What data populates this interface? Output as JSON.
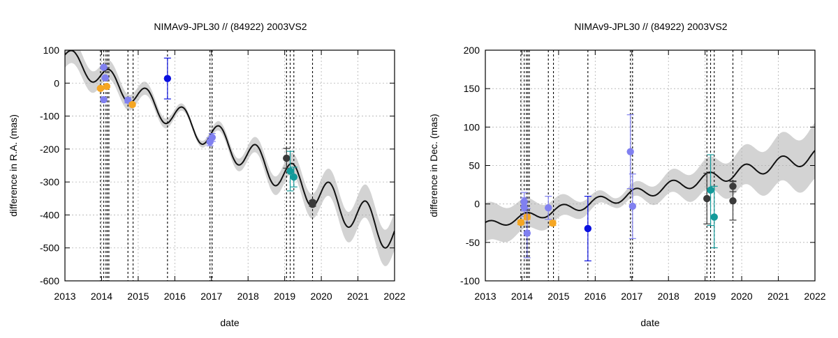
{
  "colors": {
    "band": "#d3d3d3",
    "model": "#111111",
    "grid": "#b0b0b0",
    "vline": "#000000",
    "orange": "#f5a623",
    "lightblue": "#8080f0",
    "blue": "#0a10e0",
    "teal": "#139a9a",
    "dark": "#3a3a3a"
  },
  "chart_data": [
    {
      "type": "scatter",
      "title": "NIMAv9-JPL30 // (84922) 2003VS2",
      "xlabel": "date",
      "ylabel": "difference in R.A. (mas)",
      "xlim": [
        2013,
        2022
      ],
      "ylim": [
        -600,
        100
      ],
      "xticks": [
        2013,
        2014,
        2015,
        2016,
        2017,
        2018,
        2019,
        2020,
        2021,
        2022
      ],
      "xtick_labels": [
        "2013",
        "2014",
        "2015",
        "2016",
        "2017",
        "2018",
        "2019",
        "2020",
        "2021",
        "2022"
      ],
      "yticks": [
        -600,
        -500,
        -400,
        -300,
        -200,
        -100,
        0,
        100
      ],
      "ytick_labels": [
        "-600",
        "-500",
        "-400",
        "-300",
        "-200",
        "-100",
        "0",
        "100"
      ],
      "grid": true,
      "model": {
        "mean": -160,
        "slope": -60,
        "amp": 30,
        "amp_growth": 3,
        "phase": 0.2,
        "unc0": 8,
        "unc_growth": 9
      },
      "observation_dates": [
        13.97,
        14.06,
        14.12,
        14.16,
        14.2,
        14.72,
        14.86,
        15.8,
        16.96,
        17.02,
        19.05,
        19.15,
        19.25,
        19.76
      ],
      "points": [
        {
          "x": 2013.97,
          "y": -16,
          "err": 3,
          "color": "orange"
        },
        {
          "x": 2014.06,
          "y": 48,
          "err": 3,
          "color": "lightblue"
        },
        {
          "x": 2014.1,
          "y": 16,
          "err": 3,
          "color": "lightblue"
        },
        {
          "x": 2014.06,
          "y": -50,
          "err": 3,
          "color": "lightblue"
        },
        {
          "x": 2014.14,
          "y": -10,
          "err": 3,
          "color": "orange"
        },
        {
          "x": 2014.72,
          "y": -52,
          "err": 8,
          "color": "lightblue"
        },
        {
          "x": 2014.84,
          "y": -65,
          "err": 5,
          "color": "orange"
        },
        {
          "x": 2015.8,
          "y": 14,
          "err": 62,
          "color": "blue"
        },
        {
          "x": 2016.96,
          "y": -178,
          "err": 12,
          "color": "lightblue"
        },
        {
          "x": 2017.02,
          "y": -165,
          "err": 12,
          "color": "lightblue"
        },
        {
          "x": 2019.05,
          "y": -228,
          "err": 30,
          "color": "dark"
        },
        {
          "x": 2019.15,
          "y": -267,
          "err": 60,
          "color": "teal"
        },
        {
          "x": 2019.25,
          "y": -285,
          "err": 30,
          "color": "teal"
        },
        {
          "x": 2019.76,
          "y": -362,
          "err": 6,
          "color": "dark"
        },
        {
          "x": 2019.76,
          "y": -368,
          "err": 6,
          "color": "dark"
        }
      ]
    },
    {
      "type": "scatter",
      "title": "NIMAv9-JPL30 // (84922) 2003VS2",
      "xlabel": "date",
      "ylabel": "difference in Dec. (mas)",
      "xlim": [
        2013,
        2022
      ],
      "ylim": [
        -100,
        200
      ],
      "xticks": [
        2013,
        2014,
        2015,
        2016,
        2017,
        2018,
        2019,
        2020,
        2021,
        2022
      ],
      "xtick_labels": [
        "2013",
        "2014",
        "2015",
        "2016",
        "2017",
        "2018",
        "2019",
        "2020",
        "2021",
        "2022"
      ],
      "yticks": [
        -100,
        -50,
        0,
        50,
        100,
        150,
        200
      ],
      "ytick_labels": [
        "-100",
        "-50",
        "0",
        "50",
        "100",
        "150",
        "200"
      ],
      "grid": true,
      "model": {
        "mean": 12,
        "slope": 10,
        "amp": 5,
        "amp_growth": 0.5,
        "phase": 0.9,
        "unc0": 6,
        "unc_growth": 5.5
      },
      "observation_dates": [
        13.97,
        14.06,
        14.12,
        14.16,
        14.2,
        14.72,
        14.86,
        15.8,
        16.96,
        17.02,
        19.05,
        19.15,
        19.25,
        19.76
      ],
      "points": [
        {
          "x": 2013.97,
          "y": -24,
          "err": 3,
          "color": "orange"
        },
        {
          "x": 2014.06,
          "y": 3,
          "err": 12,
          "color": "lightblue"
        },
        {
          "x": 2014.06,
          "y": -4,
          "err": 12,
          "color": "lightblue"
        },
        {
          "x": 2014.14,
          "y": -17,
          "err": 3,
          "color": "orange"
        },
        {
          "x": 2014.14,
          "y": -38,
          "err": 32,
          "color": "lightblue"
        },
        {
          "x": 2014.72,
          "y": -5,
          "err": 15,
          "color": "lightblue"
        },
        {
          "x": 2014.84,
          "y": -25,
          "err": 3,
          "color": "orange"
        },
        {
          "x": 2015.8,
          "y": -32,
          "err": 42,
          "color": "blue"
        },
        {
          "x": 2016.96,
          "y": 68,
          "err": 48,
          "color": "lightblue"
        },
        {
          "x": 2017.02,
          "y": -3,
          "err": 42,
          "color": "lightblue"
        },
        {
          "x": 2019.05,
          "y": 7,
          "err": 33,
          "color": "dark"
        },
        {
          "x": 2019.15,
          "y": 18,
          "err": 46,
          "color": "teal"
        },
        {
          "x": 2019.25,
          "y": -17,
          "err": 40,
          "color": "teal"
        },
        {
          "x": 2019.76,
          "y": 23,
          "err": 7,
          "color": "dark"
        },
        {
          "x": 2019.76,
          "y": 4,
          "err": 25,
          "color": "dark"
        }
      ]
    }
  ]
}
